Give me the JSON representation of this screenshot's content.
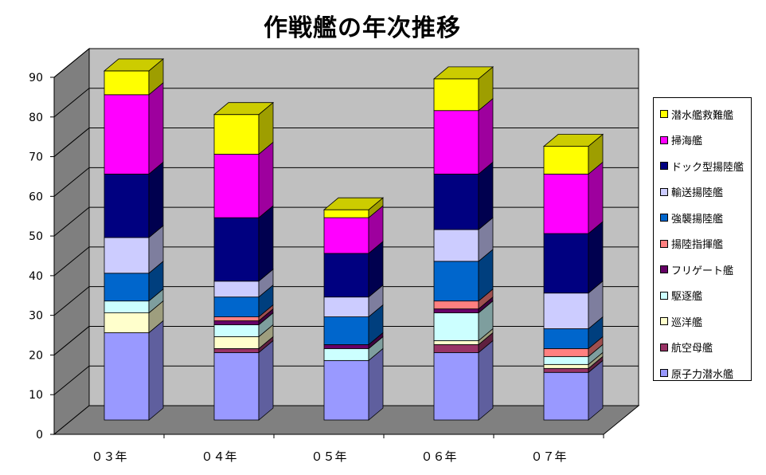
{
  "chart_data": {
    "type": "bar",
    "stacked": true,
    "style": "3d",
    "title": "作戦艦の年次推移",
    "categories": [
      "０３年",
      "０４年",
      "０５年",
      "０６年",
      "０７年"
    ],
    "y_ticks": [
      0,
      10,
      20,
      30,
      40,
      50,
      60,
      70,
      80,
      90
    ],
    "ylim": [
      0,
      90
    ],
    "grid": true,
    "legend_position": "right",
    "series": [
      {
        "name": "原子力潜水艦",
        "color": "#9999ff",
        "values": [
          22,
          17,
          15,
          17,
          12
        ]
      },
      {
        "name": "航空母艦",
        "color": "#993366",
        "values": [
          0,
          1,
          0,
          2,
          1
        ]
      },
      {
        "name": "巡洋艦",
        "color": "#ffffcc",
        "values": [
          5,
          3,
          0,
          1,
          1
        ]
      },
      {
        "name": "駆逐艦",
        "color": "#ccffff",
        "values": [
          3,
          3,
          3,
          7,
          2
        ]
      },
      {
        "name": "フリゲート艦",
        "color": "#660066",
        "values": [
          0,
          1,
          1,
          1,
          0
        ]
      },
      {
        "name": "揚陸指揮艦",
        "color": "#ff8080",
        "values": [
          0,
          1,
          0,
          2,
          2
        ]
      },
      {
        "name": "強襲揚陸艦",
        "color": "#0066cc",
        "values": [
          7,
          5,
          7,
          10,
          5
        ]
      },
      {
        "name": "輸送揚陸艦",
        "color": "#ccccff",
        "values": [
          9,
          4,
          5,
          8,
          9
        ]
      },
      {
        "name": "ドック型揚陸艦",
        "color": "#000080",
        "values": [
          16,
          16,
          11,
          14,
          15
        ]
      },
      {
        "name": "掃海艦",
        "color": "#ff00ff",
        "values": [
          20,
          16,
          9,
          16,
          15
        ]
      },
      {
        "name": "潜水艦救難艦",
        "color": "#ffff00",
        "values": [
          6,
          10,
          2,
          8,
          7
        ]
      }
    ]
  }
}
